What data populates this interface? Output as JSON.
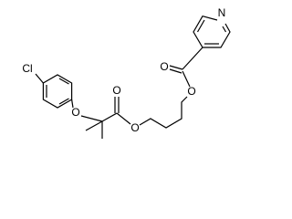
{
  "atoms": {
    "labels": [
      "Cl",
      "O",
      "O",
      "O",
      "O",
      "O",
      "N"
    ]
  }
}
